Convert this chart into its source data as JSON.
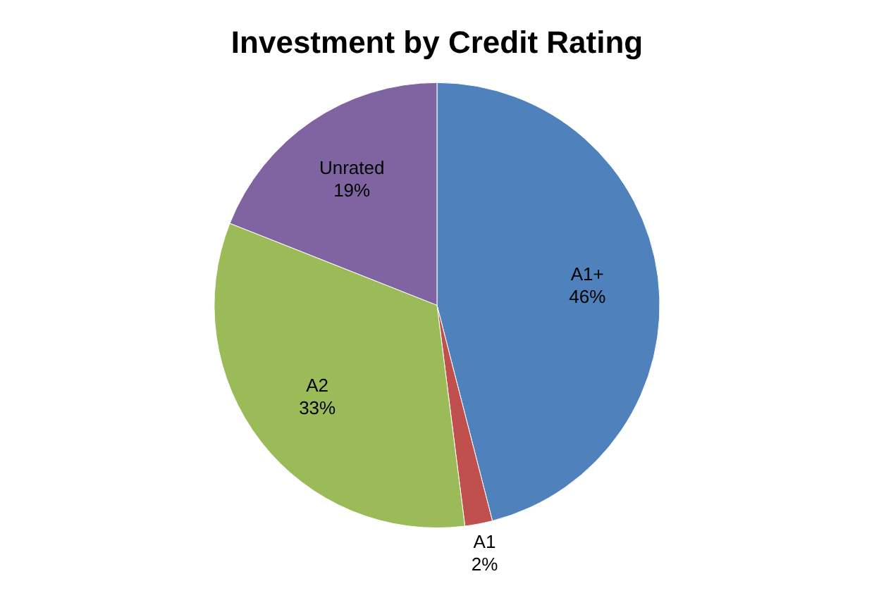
{
  "chart_data": {
    "type": "pie",
    "title": "Investment by Credit Rating",
    "categories": [
      "A1+",
      "A1",
      "A2",
      "Unrated"
    ],
    "values": [
      46,
      2,
      33,
      19
    ],
    "colors": [
      "#4f81bd",
      "#c0504d",
      "#9bbb59",
      "#8064a2"
    ],
    "value_labels": [
      "46%",
      "2%",
      "33%",
      "19%"
    ],
    "legend": false
  }
}
